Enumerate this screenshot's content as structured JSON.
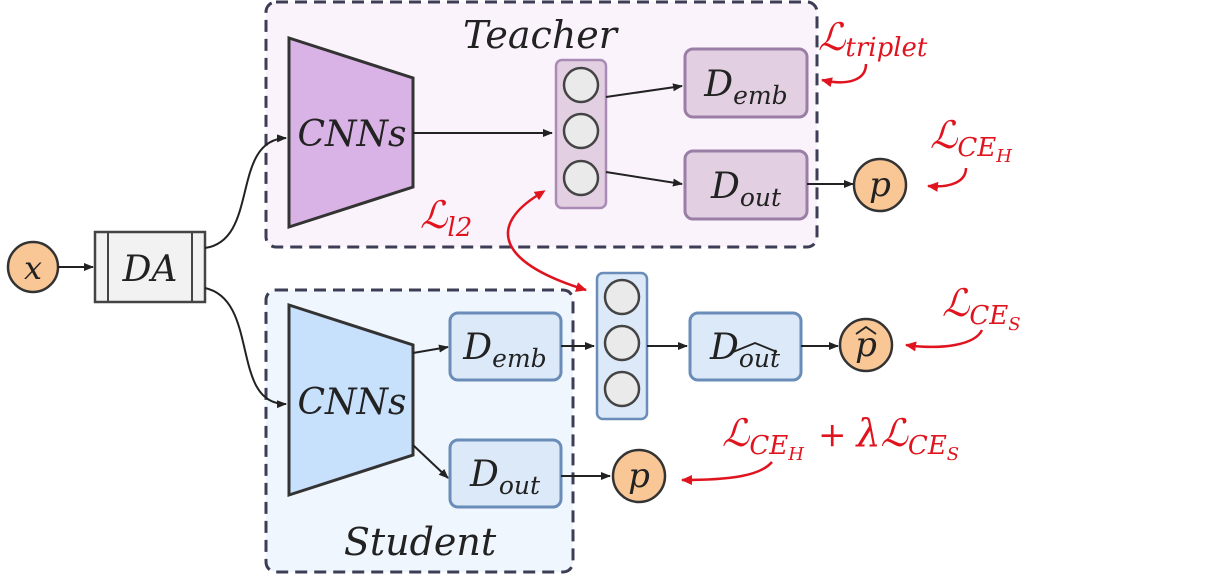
{
  "diagram": {
    "input": {
      "label": "x"
    },
    "augment": {
      "label": "DA"
    },
    "teacher": {
      "title": "Teacher",
      "backbone": "CNNs",
      "embed_head": {
        "base": "D",
        "sub": "emb"
      },
      "out_head": {
        "base": "D",
        "sub": "out"
      },
      "prob": "p"
    },
    "student": {
      "title": "Student",
      "backbone": "CNNs",
      "embed_head": {
        "base": "D",
        "sub": "emb"
      },
      "out_head": {
        "base": "D",
        "sub": "out"
      },
      "hat_head": {
        "base": "D",
        "sub": "out"
      },
      "prob": "p",
      "prob_hat": "p"
    },
    "losses": {
      "triplet": {
        "symbol": "ℒ",
        "sub": "triplet"
      },
      "ce_h": {
        "symbol": "ℒ",
        "sub": "CE",
        "subsub": "H"
      },
      "l2": {
        "symbol": "ℒ",
        "sub": "l2"
      },
      "ce_s": {
        "symbol": "ℒ",
        "sub": "CE",
        "subsub": "S"
      },
      "combined": {
        "symbol": "ℒ",
        "sub": "CE",
        "subsub": "H",
        "plus": "+",
        "lambda": "λ",
        "symbol2": "ℒ",
        "sub2": "CE",
        "subsub2": "S"
      }
    },
    "colors": {
      "teacher_fill": "#d9b3e6",
      "teacher_box": "#e2d0e2",
      "teacher_bg": "#faf3fb",
      "student_fill": "#c7e0fb",
      "student_box": "#dce9f8",
      "student_bg": "#f0f6fd",
      "prob_fill": "#f9c795",
      "loss": "#e0141e",
      "frame": "#3d3d55"
    }
  }
}
